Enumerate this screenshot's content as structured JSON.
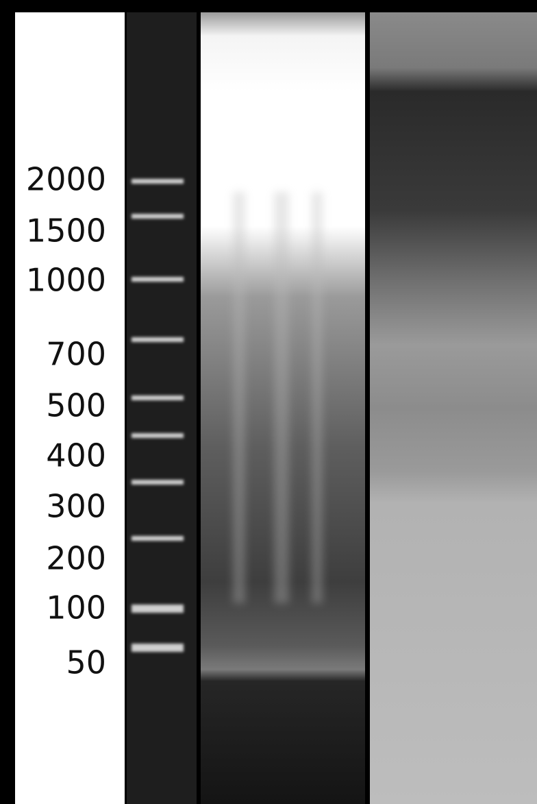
{
  "ladder": {
    "labels": [
      "2000",
      "1500",
      "1000",
      "700",
      "500",
      "400",
      "300",
      "200",
      "100",
      "50"
    ]
  }
}
